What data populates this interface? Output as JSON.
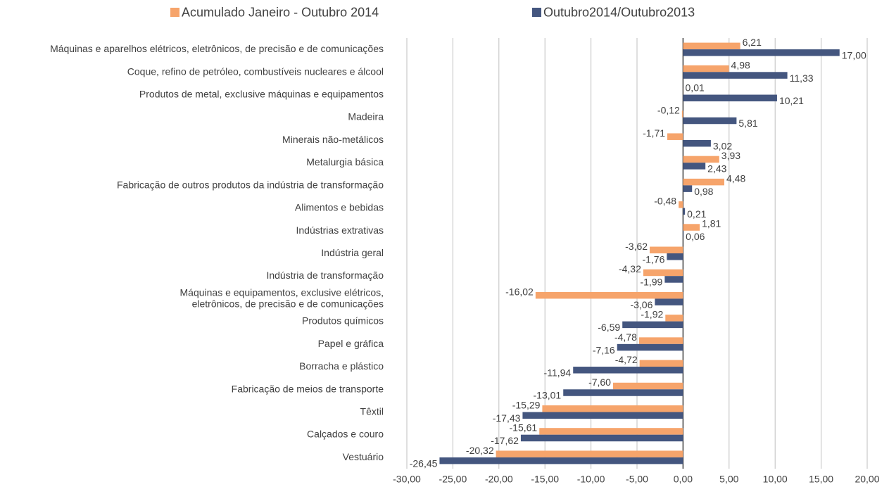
{
  "chart_data": {
    "type": "hbar",
    "categories": [
      "Máquinas e aparelhos elétricos, eletrônicos, de precisão e de comunicações",
      "Coque, refino de petróleo, combustíveis nucleares e álcool",
      "Produtos de metal, exclusive máquinas e equipamentos",
      "Madeira",
      "Minerais não-metálicos",
      "Metalurgia básica",
      "Fabricação de outros produtos da indústria de transformação",
      "Alimentos e bebidas",
      "Indústrias extrativas",
      "Indústria geral",
      "Indústria de transformação",
      "Máquinas e equipamentos, exclusive elétricos,\neletrônicos, de precisão e de comunicações",
      "Produtos químicos",
      "Papel e gráfica",
      "Borracha e plástico",
      "Fabricação de meios de transporte",
      "Têxtil",
      "Calçados e couro",
      "Vestuário"
    ],
    "series": [
      {
        "name": "Acumulado Janeiro - Outubro 2014",
        "color": "#f6a46b",
        "values": [
          6.21,
          4.98,
          0.01,
          -0.12,
          -1.71,
          3.93,
          4.48,
          -0.48,
          1.81,
          -3.62,
          -4.32,
          -16.02,
          -1.92,
          -4.78,
          -4.72,
          -7.6,
          -15.29,
          -15.61,
          -20.32
        ],
        "value_labels": [
          "6,21",
          "4,98",
          "0,01",
          "-0,12",
          "-1,71",
          "3,93",
          "4,48",
          "-0,48",
          "1,81",
          "-3,62",
          "-4,32",
          "-16,02",
          "-1,92",
          "-4,78",
          "-4,72",
          "-7,60",
          "-15,29",
          "-15,61",
          "-20,32"
        ]
      },
      {
        "name": "Outubro2014/Outubro2013",
        "color": "#44567f",
        "values": [
          17,
          11.33,
          10.21,
          5.81,
          3.02,
          2.43,
          0.98,
          0.21,
          0.06,
          -1.76,
          -1.99,
          -3.06,
          -6.59,
          -7.16,
          -11.94,
          -13.01,
          -17.43,
          -17.62,
          -26.45
        ],
        "value_labels": [
          "17,00",
          "11,33",
          "10,21",
          "5,81",
          "3,02",
          "2,43",
          "0,98",
          "0,21",
          "0,06",
          "-1,76",
          "-1,99",
          "-3,06",
          "-6,59",
          "-7,16",
          "-11,94",
          "-13,01",
          "-17,43",
          "-17,62",
          "-26,45"
        ]
      }
    ],
    "xlim": [
      -30,
      20
    ],
    "xticks": [
      {
        "value": -30,
        "label": "-30,00"
      },
      {
        "value": -25,
        "label": "-25,00"
      },
      {
        "value": -20,
        "label": "-20,00"
      },
      {
        "value": -15,
        "label": "-15,00"
      },
      {
        "value": -10,
        "label": "-10,00"
      },
      {
        "value": -5,
        "label": "-5,00"
      },
      {
        "value": 0,
        "label": "0,00"
      },
      {
        "value": 5,
        "label": "5,00"
      },
      {
        "value": 10,
        "label": "10,00"
      },
      {
        "value": 15,
        "label": "15,00"
      },
      {
        "value": 20,
        "label": "20,00"
      }
    ],
    "grid": true,
    "legend": "top"
  }
}
